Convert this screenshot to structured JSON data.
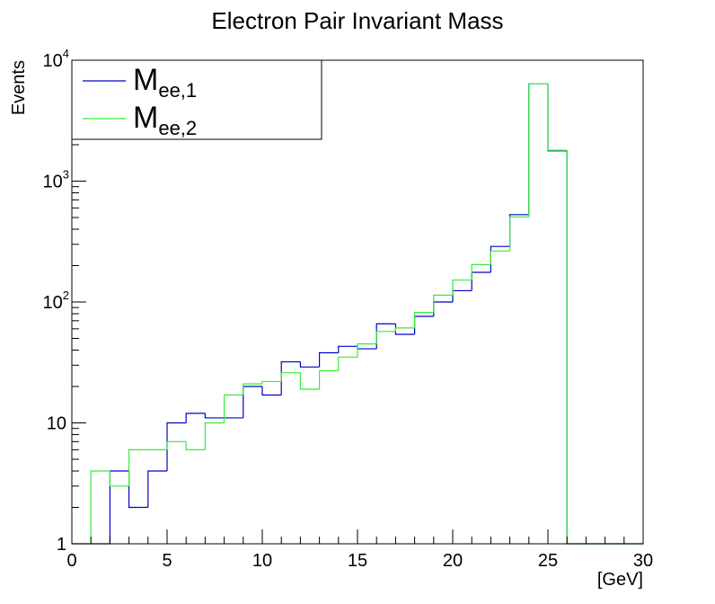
{
  "chart_data": {
    "type": "histogram",
    "title": "Electron Pair Invariant Mass",
    "xlabel": "[GeV]",
    "ylabel": "Events",
    "xlim": [
      0,
      30
    ],
    "ylim": [
      1,
      10000
    ],
    "yscale": "log",
    "grid": false,
    "legend_position": "top-left",
    "bin_edges": [
      0,
      1,
      2,
      3,
      4,
      5,
      6,
      7,
      8,
      9,
      10,
      11,
      12,
      13,
      14,
      15,
      16,
      17,
      18,
      19,
      20,
      21,
      22,
      23,
      24,
      25,
      26,
      27,
      28,
      29,
      30
    ],
    "x_ticks": [
      "0",
      "5",
      "10",
      "15",
      "20",
      "25",
      "30"
    ],
    "x_tick_values": [
      0,
      5,
      10,
      15,
      20,
      25,
      30
    ],
    "y_ticks": [
      {
        "value": 1,
        "base": "1",
        "exp": ""
      },
      {
        "value": 10,
        "base": "10",
        "exp": ""
      },
      {
        "value": 100,
        "base": "10",
        "exp": "2"
      },
      {
        "value": 1000,
        "base": "10",
        "exp": "3"
      },
      {
        "value": 10000,
        "base": "10",
        "exp": "4"
      }
    ],
    "series": [
      {
        "name": "M",
        "subscript": "ee,1",
        "color": "#0000cc",
        "values": [
          0,
          0,
          4,
          2,
          4,
          10,
          12,
          11,
          11,
          20,
          17,
          32,
          29,
          38,
          43,
          41,
          66,
          54,
          76,
          100,
          124,
          176,
          288,
          528,
          6400,
          1780,
          0,
          0,
          0,
          0
        ]
      },
      {
        "name": "M",
        "subscript": "ee,2",
        "color": "#33ee33",
        "values": [
          0,
          4,
          3,
          6,
          6,
          7,
          6,
          10,
          17,
          21,
          22,
          26,
          19,
          27,
          35,
          45,
          57,
          61,
          82,
          114,
          152,
          204,
          264,
          506,
          6400,
          1800,
          0,
          0,
          0,
          0
        ]
      }
    ]
  }
}
